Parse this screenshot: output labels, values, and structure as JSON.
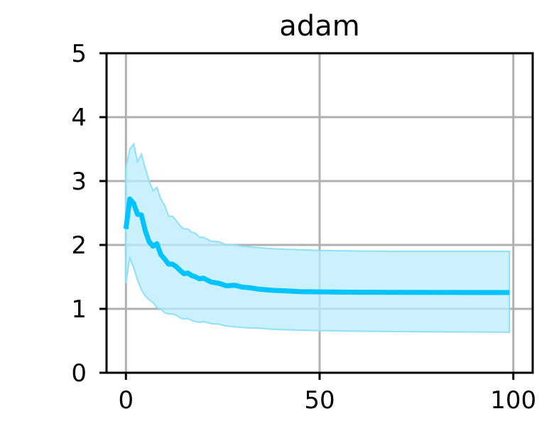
{
  "chart_data": {
    "type": "line",
    "title": "adam",
    "xlabel": "",
    "ylabel": "",
    "xlim": [
      -5,
      105
    ],
    "ylim": [
      0,
      5
    ],
    "xticks": [
      0,
      50,
      100
    ],
    "yticks": [
      0,
      1,
      2,
      3,
      4,
      5
    ],
    "grid": true,
    "colors": {
      "line": "#00c3ff",
      "band": "#b8ecfb",
      "band_edge": "#8fe0f8"
    },
    "series": [
      {
        "x": [
          0,
          1,
          2,
          3,
          4,
          5,
          6,
          7,
          8,
          9,
          10,
          11,
          12,
          13,
          14,
          15,
          16,
          17,
          18,
          19,
          20,
          22,
          24,
          26,
          28,
          30,
          32,
          34,
          36,
          38,
          40,
          45,
          50,
          55,
          60,
          70,
          80,
          90,
          99
        ],
        "y": [
          2.25,
          2.72,
          2.65,
          2.48,
          2.47,
          2.22,
          2.05,
          1.98,
          2.02,
          1.85,
          1.78,
          1.7,
          1.7,
          1.66,
          1.6,
          1.55,
          1.56,
          1.52,
          1.5,
          1.47,
          1.48,
          1.42,
          1.4,
          1.36,
          1.37,
          1.34,
          1.33,
          1.31,
          1.3,
          1.29,
          1.285,
          1.27,
          1.265,
          1.262,
          1.26,
          1.258,
          1.257,
          1.256,
          1.256
        ],
        "lower": [
          1.4,
          1.8,
          1.65,
          1.45,
          1.3,
          1.2,
          1.14,
          1.1,
          1.02,
          1.0,
          0.94,
          0.92,
          0.92,
          0.9,
          0.86,
          0.84,
          0.85,
          0.82,
          0.8,
          0.79,
          0.8,
          0.77,
          0.76,
          0.73,
          0.72,
          0.71,
          0.7,
          0.7,
          0.69,
          0.68,
          0.675,
          0.665,
          0.66,
          0.655,
          0.65,
          0.645,
          0.64,
          0.638,
          0.635
        ],
        "upper": [
          3.2,
          3.5,
          3.58,
          3.3,
          3.42,
          3.2,
          3.0,
          2.85,
          2.9,
          2.72,
          2.62,
          2.45,
          2.45,
          2.38,
          2.3,
          2.25,
          2.25,
          2.2,
          2.18,
          2.12,
          2.12,
          2.06,
          2.05,
          2.0,
          2.0,
          1.98,
          1.97,
          1.96,
          1.95,
          1.94,
          1.935,
          1.925,
          1.915,
          1.91,
          1.905,
          1.9,
          1.9,
          1.9,
          1.9
        ]
      }
    ]
  }
}
